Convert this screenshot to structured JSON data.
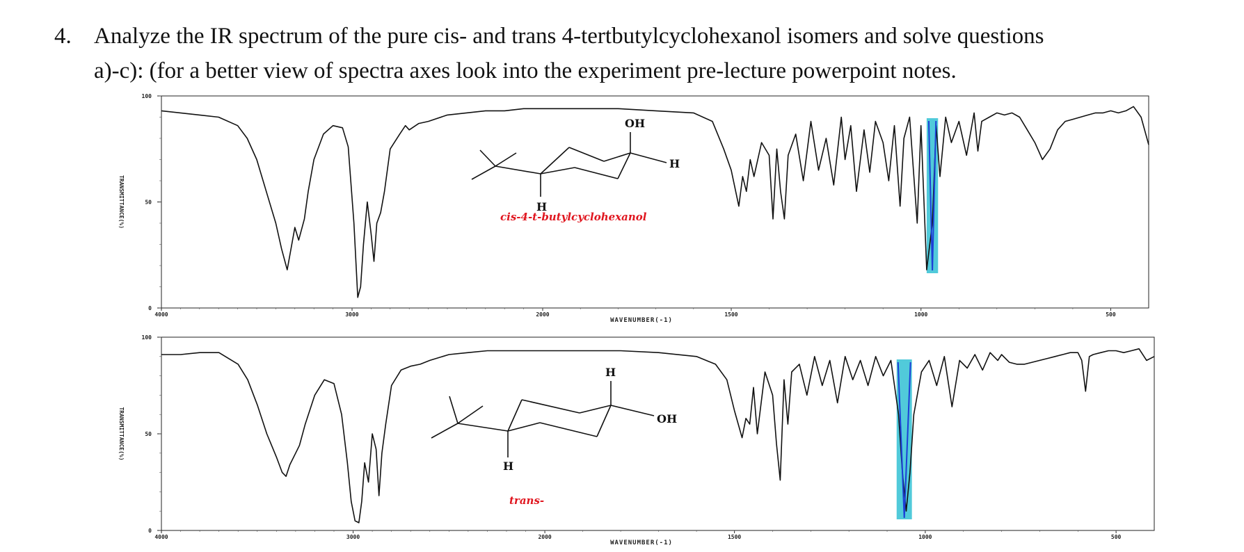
{
  "question": {
    "number": "4.",
    "line1": "Analyze the IR spectrum of the pure cis- and trans 4-tertbutylcyclohexanol isomers and solve questions",
    "line2": "a)-c): (for a better view of spectra axes look into the experiment pre-lecture powerpoint notes."
  },
  "colors": {
    "trace": "#111111",
    "highlight": "#3ec4d6",
    "highlight_line": "#1c3fd6",
    "caption": "#e0161f"
  },
  "chart_data": [
    {
      "type": "line",
      "name": "cis",
      "xlabel": "WAVENUMBER(-1)",
      "ylabel": "TRANSMITTANCE(%)",
      "xlim": [
        4000,
        400
      ],
      "ylim": [
        0,
        100
      ],
      "x_tick_labels": [
        "4000",
        "3000",
        "2000",
        "1500",
        "1000",
        "500"
      ],
      "y_tick_labels": [
        "100",
        "50",
        "0"
      ],
      "structure": {
        "top_label": "OH",
        "side_label": "H",
        "bottom_label": "H",
        "caption": "cis-4-t-butylcyclohexanol"
      },
      "highlight_range": [
        985,
        955
      ],
      "series": [
        {
          "x": [
            4000,
            3900,
            3800,
            3700,
            3600,
            3550,
            3500,
            3450,
            3400,
            3370,
            3340,
            3320,
            3300,
            3280,
            3250,
            3230,
            3200,
            3150,
            3100,
            3050,
            3020,
            2990,
            2970,
            2955,
            2940,
            2920,
            2900,
            2885,
            2870,
            2850,
            2830,
            2800,
            2750,
            2720,
            2700,
            2650,
            2600,
            2500,
            2400,
            2300,
            2200,
            2100,
            2000,
            1900,
            1800,
            1700,
            1600,
            1550,
            1520,
            1500,
            1480,
            1470,
            1460,
            1450,
            1440,
            1420,
            1400,
            1390,
            1380,
            1370,
            1360,
            1350,
            1330,
            1310,
            1290,
            1270,
            1250,
            1230,
            1210,
            1200,
            1185,
            1170,
            1150,
            1135,
            1120,
            1100,
            1085,
            1070,
            1055,
            1045,
            1030,
            1010,
            1000,
            985,
            970,
            960,
            950,
            935,
            920,
            900,
            880,
            860,
            850,
            840,
            820,
            800,
            780,
            760,
            740,
            720,
            700,
            680,
            660,
            640,
            620,
            600,
            580,
            560,
            540,
            520,
            500,
            480,
            460,
            440,
            420,
            400
          ],
          "y": [
            93,
            92,
            91,
            90,
            86,
            80,
            70,
            55,
            40,
            28,
            18,
            28,
            38,
            32,
            42,
            55,
            70,
            82,
            86,
            85,
            76,
            40,
            5,
            10,
            30,
            50,
            35,
            22,
            40,
            45,
            55,
            75,
            82,
            86,
            84,
            87,
            88,
            91,
            92,
            93,
            93,
            94,
            94,
            94,
            94,
            93,
            92,
            88,
            75,
            65,
            48,
            62,
            55,
            70,
            62,
            78,
            72,
            42,
            75,
            55,
            42,
            72,
            82,
            60,
            88,
            65,
            80,
            58,
            90,
            70,
            86,
            55,
            84,
            64,
            88,
            78,
            60,
            86,
            48,
            80,
            90,
            40,
            86,
            18,
            40,
            86,
            62,
            90,
            78,
            88,
            72,
            92,
            74,
            88,
            90,
            92,
            91,
            92,
            90,
            84,
            78,
            70,
            75,
            84,
            88,
            89,
            90,
            91,
            92,
            92,
            93,
            92,
            93,
            95,
            90,
            77
          ]
        }
      ]
    },
    {
      "type": "line",
      "name": "trans",
      "xlabel": "WAVENUMBER(-1)",
      "ylabel": "TRANSMITTANCE(%)",
      "xlim": [
        4000,
        400
      ],
      "ylim": [
        0,
        100
      ],
      "x_tick_labels": [
        "4000",
        "3000",
        "2000",
        "1500",
        "1000",
        "500"
      ],
      "y_tick_labels": [
        "100",
        "50",
        "0"
      ],
      "structure": {
        "top_label": "H",
        "side_label": "OH",
        "bottom_label": "H",
        "caption": "trans-"
      },
      "highlight_range": [
        1075,
        1035
      ],
      "series": [
        {
          "x": [
            4000,
            3900,
            3800,
            3700,
            3600,
            3550,
            3500,
            3450,
            3400,
            3370,
            3350,
            3330,
            3300,
            3280,
            3250,
            3200,
            3150,
            3100,
            3060,
            3030,
            3010,
            2990,
            2970,
            2955,
            2940,
            2920,
            2900,
            2880,
            2865,
            2850,
            2830,
            2800,
            2750,
            2700,
            2650,
            2600,
            2500,
            2400,
            2300,
            2200,
            2100,
            2000,
            1900,
            1800,
            1700,
            1600,
            1550,
            1520,
            1500,
            1480,
            1470,
            1460,
            1450,
            1440,
            1420,
            1400,
            1390,
            1380,
            1370,
            1360,
            1350,
            1330,
            1310,
            1290,
            1270,
            1250,
            1230,
            1210,
            1190,
            1170,
            1150,
            1130,
            1110,
            1090,
            1070,
            1060,
            1050,
            1040,
            1030,
            1010,
            990,
            970,
            950,
            930,
            910,
            890,
            870,
            850,
            830,
            810,
            800,
            780,
            760,
            740,
            720,
            700,
            680,
            660,
            640,
            620,
            600,
            590,
            580,
            570,
            560,
            540,
            520,
            500,
            480,
            460,
            440,
            420,
            400
          ],
          "y": [
            91,
            91,
            92,
            92,
            86,
            78,
            65,
            50,
            38,
            30,
            28,
            34,
            40,
            44,
            55,
            70,
            78,
            76,
            60,
            35,
            15,
            5,
            4,
            15,
            35,
            25,
            50,
            42,
            18,
            40,
            55,
            75,
            83,
            85,
            86,
            88,
            91,
            92,
            93,
            93,
            93,
            93,
            93,
            93,
            92,
            90,
            86,
            78,
            62,
            48,
            58,
            55,
            74,
            50,
            82,
            70,
            45,
            26,
            78,
            55,
            82,
            86,
            70,
            90,
            75,
            88,
            66,
            90,
            78,
            88,
            75,
            90,
            80,
            88,
            60,
            30,
            10,
            30,
            60,
            82,
            88,
            75,
            90,
            64,
            88,
            84,
            91,
            83,
            92,
            88,
            91,
            87,
            86,
            86,
            87,
            88,
            89,
            90,
            91,
            92,
            92,
            88,
            72,
            90,
            91,
            92,
            93,
            93,
            92,
            93,
            94,
            88,
            90
          ]
        }
      ]
    }
  ]
}
